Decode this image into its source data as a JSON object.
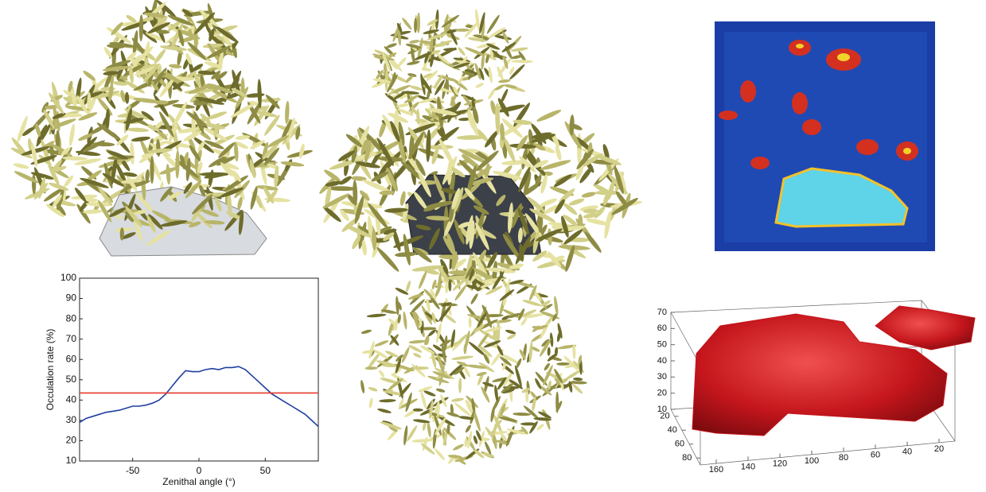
{
  "chart_data": [
    {
      "type": "line",
      "x_label": "Zenithal angle (°)",
      "y_label": "Occulation rate (%)",
      "xlim": [
        -90,
        90
      ],
      "xticks": [
        -50,
        0,
        50
      ],
      "ylim": [
        10,
        100
      ],
      "yticks": [
        10,
        20,
        30,
        40,
        50,
        60,
        70,
        80,
        90,
        100
      ],
      "x": [
        -90,
        -85,
        -80,
        -75,
        -70,
        -65,
        -60,
        -55,
        -50,
        -45,
        -40,
        -35,
        -30,
        -25,
        -20,
        -15,
        -10,
        -5,
        0,
        5,
        10,
        15,
        20,
        25,
        30,
        35,
        40,
        45,
        50,
        55,
        60,
        65,
        70,
        75,
        80,
        85,
        90
      ],
      "series": [
        {
          "color": "#1f3fa0",
          "values": [
            29,
            31,
            32,
            33,
            34,
            34.5,
            35,
            36,
            37,
            37,
            37.5,
            38.5,
            40,
            43,
            47,
            51,
            54.5,
            54,
            54,
            55,
            55.5,
            55,
            56,
            56,
            56.5,
            55,
            52,
            49,
            46,
            43,
            41,
            39,
            37,
            35,
            33,
            30,
            27
          ]
        },
        {
          "color": "#e8382a",
          "values": [
            43.5,
            43.5,
            43.5,
            43.5,
            43.5,
            43.5,
            43.5,
            43.5,
            43.5,
            43.5,
            43.5,
            43.5,
            43.5,
            43.5,
            43.5,
            43.5,
            43.5,
            43.5,
            43.5,
            43.5,
            43.5,
            43.5,
            43.5,
            43.5,
            43.5,
            43.5,
            43.5,
            43.5,
            43.5,
            43.5,
            43.5,
            43.5,
            43.5,
            43.5,
            43.5,
            43.5,
            43.5
          ]
        }
      ]
    },
    {
      "type": "isosurface",
      "color": "#c4161c",
      "xlim": [
        170,
        10
      ],
      "xticks": [
        160,
        140,
        120,
        100,
        80,
        60,
        40,
        20
      ],
      "ylim": [
        10,
        90
      ],
      "yticks": [
        20,
        40,
        60,
        80
      ],
      "zlim": [
        0,
        75
      ],
      "zticks": [
        10,
        20,
        30,
        40,
        50,
        60,
        70
      ]
    }
  ]
}
